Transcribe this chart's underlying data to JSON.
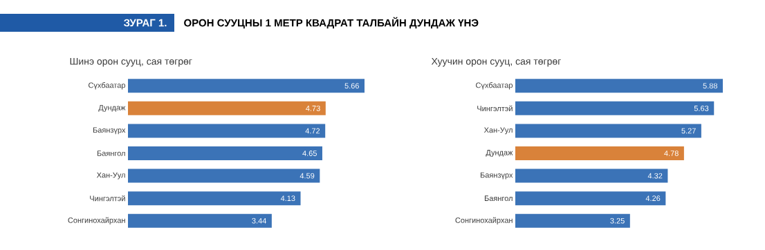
{
  "chart_data": [
    {
      "type": "bar",
      "orientation": "horizontal",
      "title": "Шинэ орон сууц, сая төгрөг",
      "annotations": [
        "ЗУРАГ 1.",
        "ОРОН СУУЦНЫ 1 МЕТР КВАДРАТ ТАЛБАЙН ДУНДАЖ ҮНЭ"
      ],
      "categories": [
        "Сүхбаатар",
        "Дундаж",
        "Баянзүрх",
        "Баянгол",
        "Хан-Уул",
        "Чингэлтэй",
        "Сонгинохайрхан"
      ],
      "values": [
        5.66,
        4.73,
        4.72,
        4.65,
        4.59,
        4.13,
        3.44
      ],
      "colors": [
        "#3b73b7",
        "#d9823a",
        "#3b73b7",
        "#3b73b7",
        "#3b73b7",
        "#3b73b7",
        "#3b73b7"
      ],
      "data_labels": true
    },
    {
      "type": "bar",
      "orientation": "horizontal",
      "title": "Хуучин орон сууц, сая төгрөг",
      "categories": [
        "Сүхбаатар",
        "Чингэлтэй",
        "Хан-Уул",
        "Дундаж",
        "Баянзүрх",
        "Баянгол",
        "Сонгинохайрхан"
      ],
      "values": [
        5.88,
        5.63,
        5.27,
        4.78,
        4.32,
        4.26,
        3.25
      ],
      "colors": [
        "#3b73b7",
        "#3b73b7",
        "#3b73b7",
        "#d9823a",
        "#3b73b7",
        "#3b73b7",
        "#3b73b7"
      ],
      "data_labels": true
    }
  ]
}
